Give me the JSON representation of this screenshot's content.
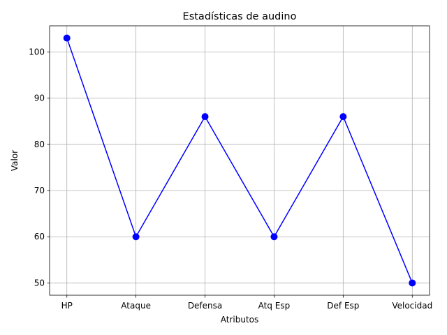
{
  "chart_data": {
    "type": "line",
    "title": "Estadísticas de audino",
    "xlabel": "Atributos",
    "ylabel": "Valor",
    "categories": [
      "HP",
      "Ataque",
      "Defensa",
      "Atq Esp",
      "Def Esp",
      "Velocidad"
    ],
    "series": [
      {
        "values": [
          103,
          60,
          86,
          60,
          86,
          50
        ],
        "color": "#0000ff",
        "marker": "circle"
      }
    ],
    "ylim": [
      47.35,
      105.65
    ],
    "yticks": [
      50,
      60,
      70,
      80,
      90,
      100
    ],
    "grid": true
  }
}
